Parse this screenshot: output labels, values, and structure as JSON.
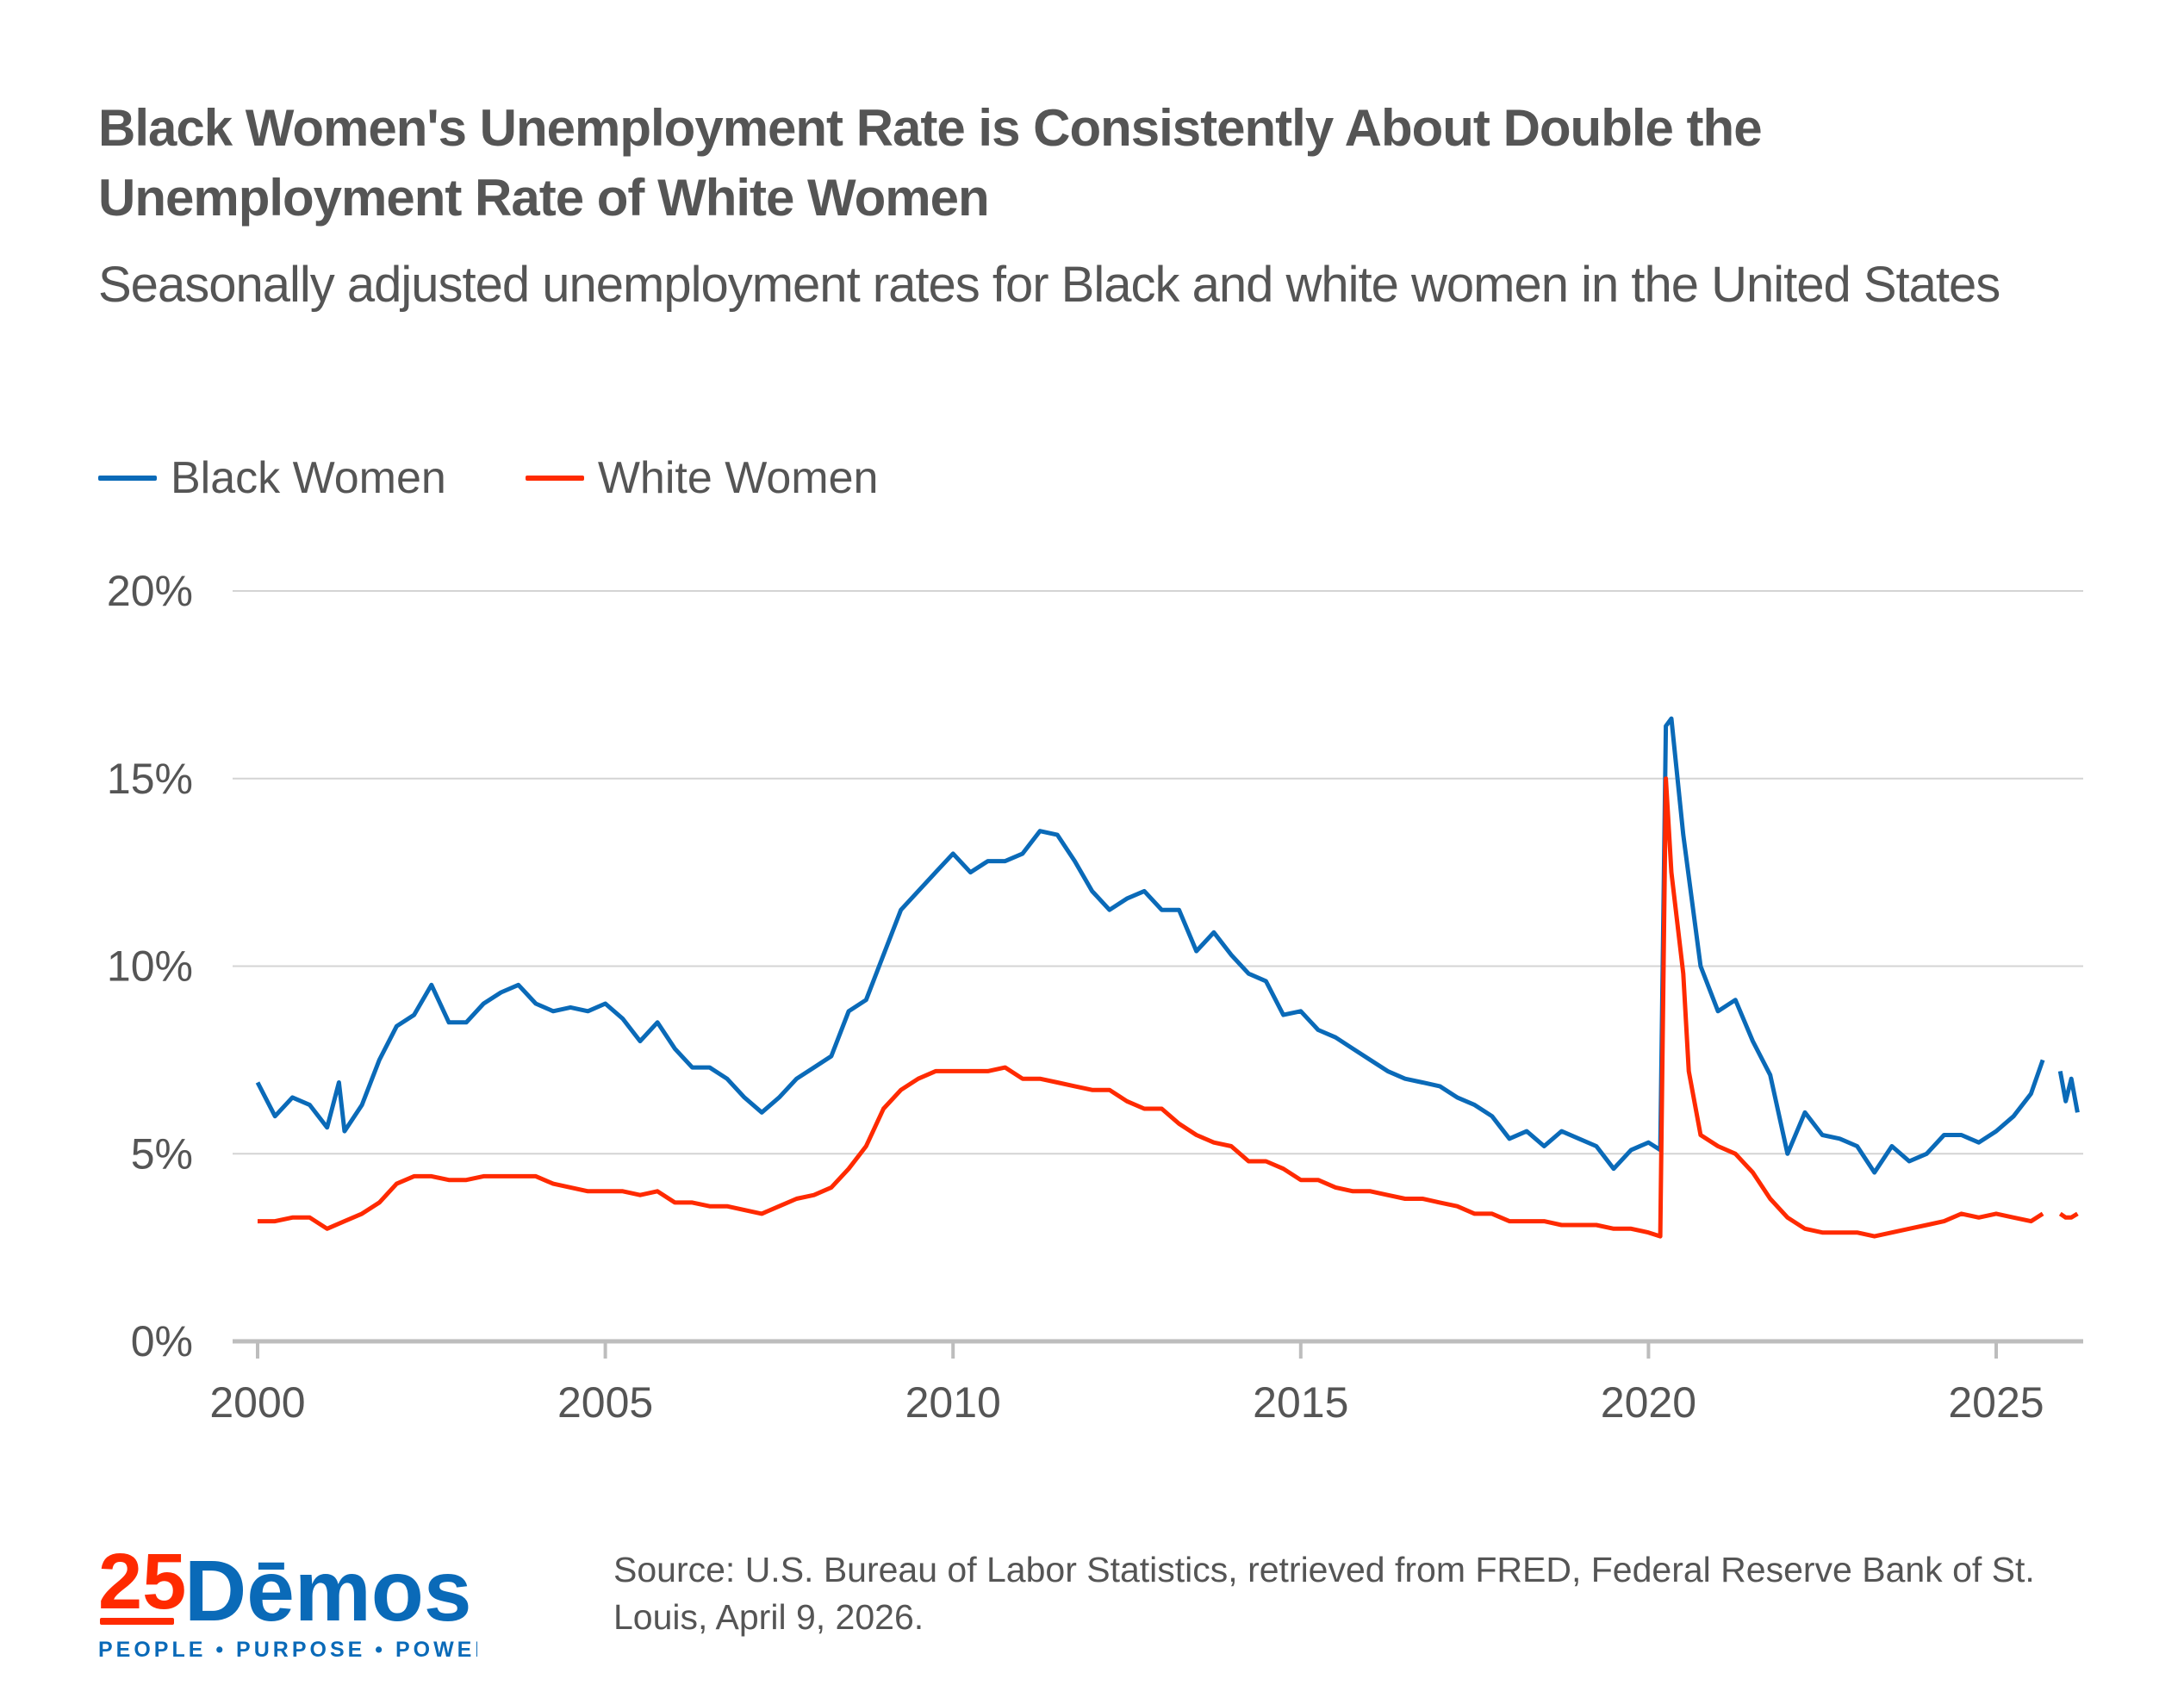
{
  "title": "Black Women's Unemployment Rate is Consistently About Double the Unemployment Rate of White Women",
  "subtitle": "Seasonally adjusted unemployment rates for Black and white women in the United States",
  "source": "Source:  U.S. Bureau of Labor Statistics, retrieved from FRED, Federal Reserve Bank of St. Louis, April 9, 2026.",
  "logo": {
    "number": "25",
    "name": "Dēmos",
    "tagline": "PEOPLE • PURPOSE • POWER",
    "colors": {
      "red": "#ff2a00",
      "blue": "#0a6ab8"
    }
  },
  "chart_data": {
    "type": "line",
    "title": "Black Women's Unemployment Rate is Consistently About Double the Unemployment Rate of White Women",
    "xlabel": "",
    "ylabel": "",
    "xlim": [
      2000,
      2026.25
    ],
    "ylim": [
      0,
      20
    ],
    "grid": true,
    "legend_position": "top-left",
    "x_ticks": [
      2000,
      2005,
      2010,
      2015,
      2020,
      2025
    ],
    "x_tick_labels": [
      "2000",
      "2005",
      "2010",
      "2015",
      "2020",
      "2025"
    ],
    "y_ticks": [
      0,
      5,
      10,
      15,
      20
    ],
    "y_tick_labels": [
      "0%",
      "5%",
      "10%",
      "15%",
      "20%"
    ],
    "series": [
      {
        "name": "Black Women",
        "color": "#0a6ab8",
        "x": [
          2000,
          2000.25,
          2000.5,
          2000.75,
          2001,
          2001.17,
          2001.25,
          2001.5,
          2001.75,
          2002,
          2002.25,
          2002.5,
          2002.75,
          2003,
          2003.25,
          2003.5,
          2003.75,
          2004,
          2004.25,
          2004.5,
          2004.75,
          2005,
          2005.25,
          2005.5,
          2005.75,
          2006,
          2006.25,
          2006.5,
          2006.75,
          2007,
          2007.25,
          2007.5,
          2007.75,
          2008,
          2008.25,
          2008.5,
          2008.75,
          2009,
          2009.25,
          2009.5,
          2009.75,
          2010,
          2010.25,
          2010.5,
          2010.75,
          2011,
          2011.25,
          2011.5,
          2011.75,
          2012,
          2012.25,
          2012.5,
          2012.75,
          2013,
          2013.25,
          2013.5,
          2013.75,
          2014,
          2014.25,
          2014.5,
          2014.75,
          2015,
          2015.25,
          2015.5,
          2015.75,
          2016,
          2016.25,
          2016.5,
          2016.75,
          2017,
          2017.25,
          2017.5,
          2017.75,
          2018,
          2018.25,
          2018.5,
          2018.75,
          2019,
          2019.25,
          2019.5,
          2019.75,
          2020,
          2020.17,
          2020.25,
          2020.33,
          2020.5,
          2020.75,
          2021,
          2021.25,
          2021.5,
          2021.75,
          2022,
          2022.25,
          2022.5,
          2022.75,
          2023,
          2023.25,
          2023.5,
          2023.75,
          2024,
          2024.25,
          2024.5,
          2024.75,
          2025,
          2025.25,
          2025.5,
          2025.67,
          2025.75,
          2025.92,
          2026,
          2026.08,
          2026.17
        ],
        "values": [
          6.9,
          6.0,
          6.5,
          6.3,
          5.7,
          6.9,
          5.6,
          6.3,
          7.5,
          8.4,
          8.7,
          9.5,
          8.5,
          8.5,
          9.0,
          9.3,
          9.5,
          9.0,
          8.8,
          8.9,
          8.8,
          9.0,
          8.6,
          8.0,
          8.5,
          7.8,
          7.3,
          7.3,
          7.0,
          6.5,
          6.1,
          6.5,
          7.0,
          7.3,
          7.6,
          8.8,
          9.1,
          10.3,
          11.5,
          12.0,
          12.5,
          13.0,
          12.5,
          12.8,
          12.8,
          13.0,
          13.6,
          13.5,
          12.8,
          12.0,
          11.5,
          11.8,
          12.0,
          11.5,
          11.5,
          10.4,
          10.9,
          10.3,
          9.8,
          9.6,
          8.7,
          8.8,
          8.3,
          8.1,
          7.8,
          7.5,
          7.2,
          7.0,
          6.9,
          6.8,
          6.5,
          6.3,
          6.0,
          5.4,
          5.6,
          5.2,
          5.6,
          5.4,
          5.2,
          4.6,
          5.1,
          5.3,
          5.1,
          16.4,
          16.6,
          13.5,
          10.0,
          8.8,
          9.1,
          8.0,
          7.1,
          5.0,
          6.1,
          5.5,
          5.4,
          5.2,
          4.5,
          5.2,
          4.8,
          5.0,
          5.5,
          5.5,
          5.3,
          5.6,
          6.0,
          6.6,
          7.5,
          null,
          7.2,
          6.4,
          7.0,
          6.1
        ]
      },
      {
        "name": "White Women",
        "color": "#ff2a00",
        "x": [
          2000,
          2000.25,
          2000.5,
          2000.75,
          2001,
          2001.25,
          2001.5,
          2001.75,
          2002,
          2002.25,
          2002.5,
          2002.75,
          2003,
          2003.25,
          2003.5,
          2003.75,
          2004,
          2004.25,
          2004.5,
          2004.75,
          2005,
          2005.25,
          2005.5,
          2005.75,
          2006,
          2006.25,
          2006.5,
          2006.75,
          2007,
          2007.25,
          2007.5,
          2007.75,
          2008,
          2008.25,
          2008.5,
          2008.75,
          2009,
          2009.25,
          2009.5,
          2009.75,
          2010,
          2010.25,
          2010.5,
          2010.75,
          2011,
          2011.25,
          2011.5,
          2011.75,
          2012,
          2012.25,
          2012.5,
          2012.75,
          2013,
          2013.25,
          2013.5,
          2013.75,
          2014,
          2014.25,
          2014.5,
          2014.75,
          2015,
          2015.25,
          2015.5,
          2015.75,
          2016,
          2016.25,
          2016.5,
          2016.75,
          2017,
          2017.25,
          2017.5,
          2017.75,
          2018,
          2018.25,
          2018.5,
          2018.75,
          2019,
          2019.25,
          2019.5,
          2019.75,
          2020,
          2020.17,
          2020.25,
          2020.33,
          2020.5,
          2020.58,
          2020.75,
          2021,
          2021.25,
          2021.5,
          2021.75,
          2022,
          2022.25,
          2022.5,
          2022.75,
          2023,
          2023.25,
          2023.5,
          2023.75,
          2024,
          2024.25,
          2024.5,
          2024.75,
          2025,
          2025.25,
          2025.5,
          2025.67,
          2025.75,
          2025.92,
          2026,
          2026.08,
          2026.17
        ],
        "values": [
          3.2,
          3.2,
          3.3,
          3.3,
          3.0,
          3.2,
          3.4,
          3.7,
          4.2,
          4.4,
          4.4,
          4.3,
          4.3,
          4.4,
          4.4,
          4.4,
          4.4,
          4.2,
          4.1,
          4.0,
          4.0,
          4.0,
          3.9,
          4.0,
          3.7,
          3.7,
          3.6,
          3.6,
          3.5,
          3.4,
          3.6,
          3.8,
          3.9,
          4.1,
          4.6,
          5.2,
          6.2,
          6.7,
          7.0,
          7.2,
          7.2,
          7.2,
          7.2,
          7.3,
          7.0,
          7.0,
          6.9,
          6.8,
          6.7,
          6.7,
          6.4,
          6.2,
          6.2,
          5.8,
          5.5,
          5.3,
          5.2,
          4.8,
          4.8,
          4.6,
          4.3,
          4.3,
          4.1,
          4.0,
          4.0,
          3.9,
          3.8,
          3.8,
          3.7,
          3.6,
          3.4,
          3.4,
          3.2,
          3.2,
          3.2,
          3.1,
          3.1,
          3.1,
          3.0,
          3.0,
          2.9,
          2.8,
          15.0,
          12.5,
          9.8,
          7.2,
          5.5,
          5.2,
          5.0,
          4.5,
          3.8,
          3.3,
          3.0,
          2.9,
          2.9,
          2.9,
          2.8,
          2.9,
          3.0,
          3.1,
          3.2,
          3.4,
          3.3,
          3.4,
          3.3,
          3.2,
          3.4,
          null,
          3.4,
          3.3,
          3.3,
          3.4
        ]
      }
    ]
  }
}
